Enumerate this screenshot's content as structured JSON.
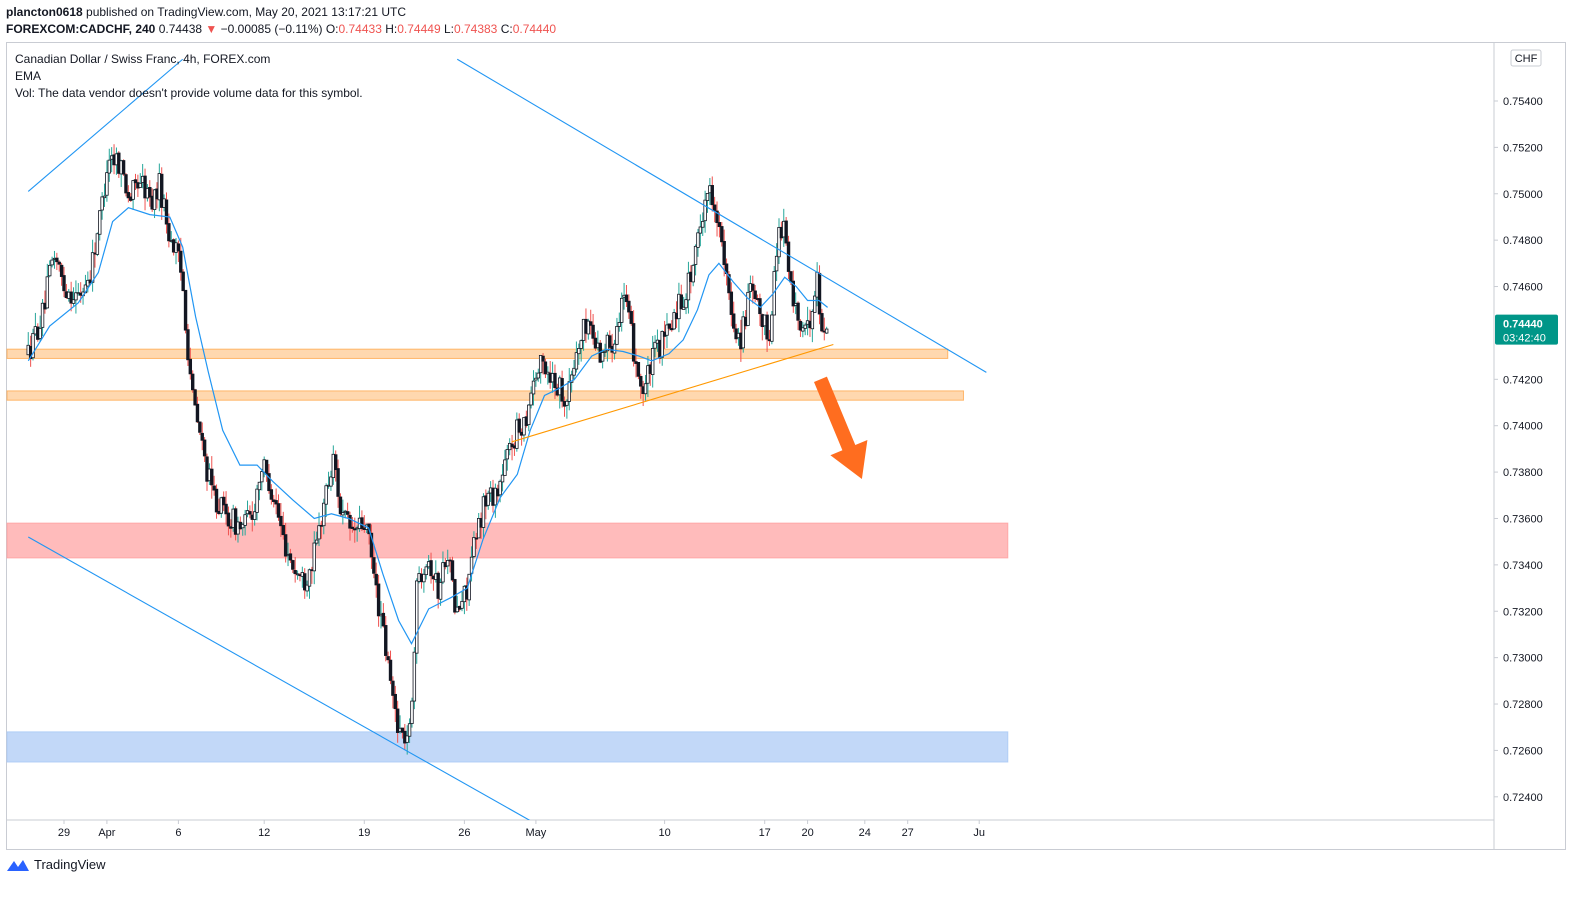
{
  "header": {
    "user": "plancton0618",
    "published_text": " published on TradingView.com, May 20, 2021 13:17:21 UTC",
    "symbol": "FOREXCOM:CADCHF, 240",
    "last": " 0.74438 ",
    "change_arrow": "▼",
    "change": " −0.00085 (−0.11%)",
    "o_label": " O:",
    "o_value": "0.74433",
    "h_label": " H:",
    "h_value": "0.74449",
    "l_label": " L:",
    "l_value": "0.74383",
    "c_label": " C:",
    "c_value": "0.74440"
  },
  "legend": {
    "title": "Canadian Dollar / Swiss Franc, 4h, FOREX.com",
    "ema": "EMA",
    "vol": "Vol: The data vendor doesn't provide volume data for this symbol."
  },
  "footer": {
    "brand": "TradingView",
    "icon": "tradingview-logo-icon"
  },
  "colors": {
    "up": "#26a69a",
    "down": "#ef5350",
    "candle_body": "#131722",
    "ema": "#2196f3",
    "channel": "#2196f3",
    "support_trend": "#ff9800",
    "resistance_zone": "#ffa94d",
    "red_zone": "#ff9e9e",
    "blue_zone": "#a8c8f5",
    "price_label_bg": "#009688",
    "arrow": "#ff6d1f"
  },
  "chart_data": {
    "type": "candlestick",
    "title": "Canadian Dollar / Swiss Franc, 4h, FOREX.com",
    "currency_label": "CHF",
    "ylim": [
      0.723,
      0.7565
    ],
    "y_ticks": [
      "0.75400",
      "0.75200",
      "0.75000",
      "0.74800",
      "0.74600",
      "0.74200",
      "0.74000",
      "0.73800",
      "0.73600",
      "0.73400",
      "0.73200",
      "0.73000",
      "0.72800",
      "0.72600",
      "0.72400"
    ],
    "x_ticks": [
      {
        "label": "29",
        "day": 0
      },
      {
        "label": "Apr",
        "day": 3
      },
      {
        "label": "6",
        "day": 8
      },
      {
        "label": "12",
        "day": 14
      },
      {
        "label": "19",
        "day": 21
      },
      {
        "label": "26",
        "day": 28
      },
      {
        "label": "May",
        "day": 33
      },
      {
        "label": "10",
        "day": 42
      },
      {
        "label": "17",
        "day": 49
      },
      {
        "label": "20",
        "day": 52
      },
      {
        "label": "24",
        "day": 56
      },
      {
        "label": "27",
        "day": 59
      },
      {
        "label": "Ju",
        "day": 64
      }
    ],
    "current_price": "0.74440",
    "countdown": "03:42:40",
    "zones": [
      {
        "name": "resistance-zone-upper",
        "from": 0.7429,
        "to": 0.7433,
        "color": "#ffa94d",
        "x_end_day": 61.8
      },
      {
        "name": "resistance-zone-lower",
        "from": 0.7411,
        "to": 0.7415,
        "color": "#ffa94d",
        "x_end_day": 62.9
      },
      {
        "name": "supply-zone",
        "from": 0.7343,
        "to": 0.7358,
        "color": "#ff9e9e",
        "x_end_day": 66
      },
      {
        "name": "demand-zone",
        "from": 0.7255,
        "to": 0.7268,
        "color": "#a8c8f5",
        "x_end_day": 66
      }
    ],
    "trendlines": [
      {
        "name": "channel-upper-left",
        "color": "#2196f3",
        "p1": {
          "day": -2.5,
          "price": 0.7501
        },
        "p2": {
          "day": 8.3,
          "price": 0.7558
        }
      },
      {
        "name": "channel-upper-right",
        "color": "#2196f3",
        "p1": {
          "day": 27.5,
          "price": 0.7558
        },
        "p2": {
          "day": 64.5,
          "price": 0.7423
        }
      },
      {
        "name": "channel-lower",
        "color": "#2196f3",
        "p1": {
          "day": -2.5,
          "price": 0.7352
        },
        "p2": {
          "day": 33.1,
          "price": 0.7228
        }
      },
      {
        "name": "support-trendline",
        "color": "#ff9800",
        "p1": {
          "day": 31.3,
          "price": 0.7393
        },
        "p2": {
          "day": 53.8,
          "price": 0.7435
        }
      }
    ],
    "projection_arrow": {
      "from": {
        "day": 52.9,
        "price": 0.742
      },
      "to": {
        "day": 55.8,
        "price": 0.7377
      }
    },
    "candle_anchors": [
      {
        "day": -2.5,
        "price": 0.7431
      },
      {
        "day": -1.5,
        "price": 0.7448
      },
      {
        "day": -0.7,
        "price": 0.7475
      },
      {
        "day": 0.0,
        "price": 0.746
      },
      {
        "day": 1.0,
        "price": 0.7455
      },
      {
        "day": 1.8,
        "price": 0.7465
      },
      {
        "day": 2.6,
        "price": 0.7493
      },
      {
        "day": 3.1,
        "price": 0.7517
      },
      {
        "day": 3.9,
        "price": 0.7514
      },
      {
        "day": 4.6,
        "price": 0.7498
      },
      {
        "day": 5.3,
        "price": 0.7507
      },
      {
        "day": 6.1,
        "price": 0.7496
      },
      {
        "day": 6.7,
        "price": 0.7504
      },
      {
        "day": 7.3,
        "price": 0.7484
      },
      {
        "day": 7.8,
        "price": 0.7476
      },
      {
        "day": 8.3,
        "price": 0.7462
      },
      {
        "day": 8.6,
        "price": 0.7438
      },
      {
        "day": 9.0,
        "price": 0.7412
      },
      {
        "day": 9.6,
        "price": 0.7393
      },
      {
        "day": 10.3,
        "price": 0.7372
      },
      {
        "day": 11.2,
        "price": 0.7362
      },
      {
        "day": 12.4,
        "price": 0.7356
      },
      {
        "day": 13.2,
        "price": 0.7362
      },
      {
        "day": 13.8,
        "price": 0.7383
      },
      {
        "day": 14.6,
        "price": 0.7372
      },
      {
        "day": 15.3,
        "price": 0.7352
      },
      {
        "day": 16.1,
        "price": 0.7338
      },
      {
        "day": 16.8,
        "price": 0.7333
      },
      {
        "day": 17.6,
        "price": 0.7346
      },
      {
        "day": 18.2,
        "price": 0.7368
      },
      {
        "day": 18.9,
        "price": 0.7386
      },
      {
        "day": 19.4,
        "price": 0.7361
      },
      {
        "day": 20.2,
        "price": 0.7354
      },
      {
        "day": 21.1,
        "price": 0.7358
      },
      {
        "day": 21.6,
        "price": 0.7338
      },
      {
        "day": 22.3,
        "price": 0.7311
      },
      {
        "day": 23.0,
        "price": 0.7282
      },
      {
        "day": 23.6,
        "price": 0.7266
      },
      {
        "day": 24.2,
        "price": 0.7267
      },
      {
        "day": 24.7,
        "price": 0.7333
      },
      {
        "day": 25.4,
        "price": 0.7345
      },
      {
        "day": 26.2,
        "price": 0.7328
      },
      {
        "day": 26.8,
        "price": 0.7349
      },
      {
        "day": 27.4,
        "price": 0.7318
      },
      {
        "day": 28.1,
        "price": 0.7328
      },
      {
        "day": 28.7,
        "price": 0.7348
      },
      {
        "day": 29.4,
        "price": 0.7368
      },
      {
        "day": 30.4,
        "price": 0.7373
      },
      {
        "day": 31.3,
        "price": 0.7393
      },
      {
        "day": 32.3,
        "price": 0.7404
      },
      {
        "day": 32.8,
        "price": 0.742
      },
      {
        "day": 33.5,
        "price": 0.7427
      },
      {
        "day": 34.5,
        "price": 0.7418
      },
      {
        "day": 35.2,
        "price": 0.7412
      },
      {
        "day": 35.8,
        "price": 0.743
      },
      {
        "day": 36.6,
        "price": 0.7446
      },
      {
        "day": 37.4,
        "price": 0.7432
      },
      {
        "day": 38.4,
        "price": 0.7437
      },
      {
        "day": 39.1,
        "price": 0.7458
      },
      {
        "day": 39.8,
        "price": 0.7434
      },
      {
        "day": 40.5,
        "price": 0.7414
      },
      {
        "day": 41.3,
        "price": 0.7431
      },
      {
        "day": 42.1,
        "price": 0.7438
      },
      {
        "day": 42.9,
        "price": 0.7452
      },
      {
        "day": 43.5,
        "price": 0.7458
      },
      {
        "day": 44.2,
        "price": 0.7474
      },
      {
        "day": 44.9,
        "price": 0.7502
      },
      {
        "day": 45.5,
        "price": 0.7498
      },
      {
        "day": 46.0,
        "price": 0.7477
      },
      {
        "day": 46.6,
        "price": 0.7449
      },
      {
        "day": 47.3,
        "price": 0.7437
      },
      {
        "day": 48.0,
        "price": 0.7458
      },
      {
        "day": 48.7,
        "price": 0.7446
      },
      {
        "day": 49.3,
        "price": 0.7439
      },
      {
        "day": 50.0,
        "price": 0.7486
      },
      {
        "day": 50.4,
        "price": 0.7486
      },
      {
        "day": 50.8,
        "price": 0.7459
      },
      {
        "day": 51.4,
        "price": 0.7445
      },
      {
        "day": 51.9,
        "price": 0.7437
      },
      {
        "day": 52.3,
        "price": 0.7452
      },
      {
        "day": 52.7,
        "price": 0.7463
      },
      {
        "day": 53.0,
        "price": 0.7439
      },
      {
        "day": 53.4,
        "price": 0.7444
      }
    ],
    "ema_anchors": [
      {
        "day": -2.5,
        "price": 0.7428
      },
      {
        "day": -1.0,
        "price": 0.7443
      },
      {
        "day": 1.0,
        "price": 0.7453
      },
      {
        "day": 2.4,
        "price": 0.7466
      },
      {
        "day": 3.4,
        "price": 0.7488
      },
      {
        "day": 4.5,
        "price": 0.7494
      },
      {
        "day": 6.0,
        "price": 0.7491
      },
      {
        "day": 7.4,
        "price": 0.749
      },
      {
        "day": 8.3,
        "price": 0.7477
      },
      {
        "day": 9.2,
        "price": 0.7447
      },
      {
        "day": 10.1,
        "price": 0.7423
      },
      {
        "day": 11.1,
        "price": 0.7398
      },
      {
        "day": 12.3,
        "price": 0.7383
      },
      {
        "day": 13.5,
        "price": 0.7383
      },
      {
        "day": 14.6,
        "price": 0.7376
      },
      {
        "day": 16.0,
        "price": 0.7368
      },
      {
        "day": 17.5,
        "price": 0.736
      },
      {
        "day": 18.7,
        "price": 0.7362
      },
      {
        "day": 19.9,
        "price": 0.736
      },
      {
        "day": 21.3,
        "price": 0.7356
      },
      {
        "day": 22.3,
        "price": 0.7336
      },
      {
        "day": 23.4,
        "price": 0.7316
      },
      {
        "day": 24.3,
        "price": 0.7306
      },
      {
        "day": 25.5,
        "price": 0.7321
      },
      {
        "day": 27.1,
        "price": 0.7326
      },
      {
        "day": 28.2,
        "price": 0.733
      },
      {
        "day": 29.3,
        "price": 0.7351
      },
      {
        "day": 30.5,
        "price": 0.7369
      },
      {
        "day": 31.7,
        "price": 0.7379
      },
      {
        "day": 32.6,
        "price": 0.7398
      },
      {
        "day": 33.6,
        "price": 0.7413
      },
      {
        "day": 34.6,
        "price": 0.7416
      },
      {
        "day": 35.7,
        "price": 0.742
      },
      {
        "day": 36.9,
        "price": 0.743
      },
      {
        "day": 37.9,
        "price": 0.7433
      },
      {
        "day": 39.1,
        "price": 0.7432
      },
      {
        "day": 40.2,
        "price": 0.743
      },
      {
        "day": 41.1,
        "price": 0.7428
      },
      {
        "day": 42.3,
        "price": 0.7431
      },
      {
        "day": 43.3,
        "price": 0.7437
      },
      {
        "day": 44.3,
        "price": 0.745
      },
      {
        "day": 45.1,
        "price": 0.7465
      },
      {
        "day": 45.8,
        "price": 0.747
      },
      {
        "day": 46.8,
        "price": 0.7462
      },
      {
        "day": 47.8,
        "price": 0.7455
      },
      {
        "day": 48.7,
        "price": 0.7451
      },
      {
        "day": 49.6,
        "price": 0.7457
      },
      {
        "day": 50.4,
        "price": 0.7464
      },
      {
        "day": 51.2,
        "price": 0.746
      },
      {
        "day": 52.0,
        "price": 0.7454
      },
      {
        "day": 52.8,
        "price": 0.7454
      },
      {
        "day": 53.4,
        "price": 0.7451
      }
    ]
  }
}
